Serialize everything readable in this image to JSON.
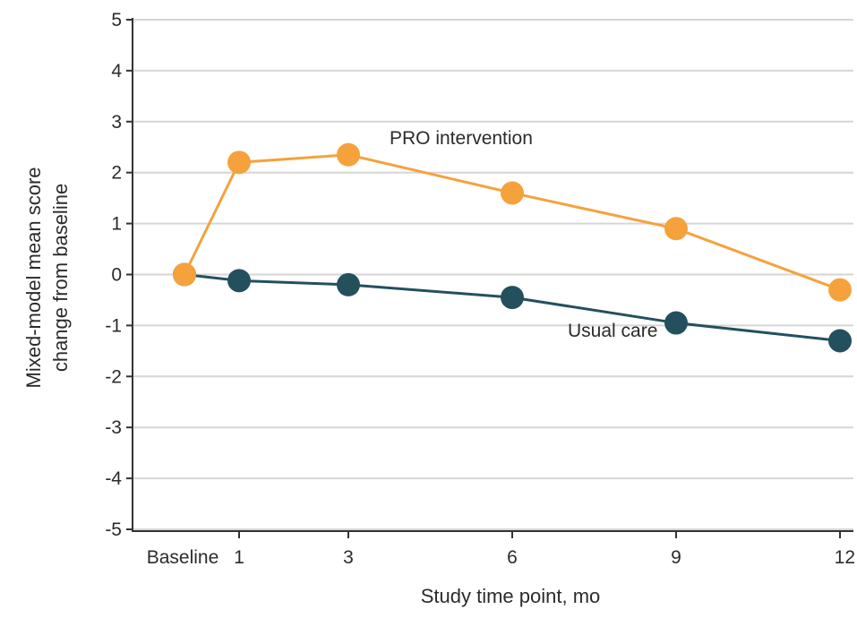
{
  "chart_data": {
    "type": "line",
    "xlabel": "Study time point, mo",
    "ylabel_lines": [
      "Mixed-model mean score",
      "change from baseline"
    ],
    "categories": [
      "Baseline",
      "1",
      "3",
      "6",
      "9",
      "12"
    ],
    "x_positions_months": [
      0,
      1,
      3,
      6,
      9,
      12
    ],
    "ylim": [
      -5,
      5
    ],
    "yticks": [
      5,
      4,
      3,
      2,
      1,
      0,
      -1,
      -2,
      -3,
      -4,
      -5
    ],
    "yticks_display": [
      "5",
      "4",
      "3",
      "2",
      "1",
      "0",
      "-1",
      "-2",
      "-3",
      "-4",
      "-5"
    ],
    "grid": true,
    "series": [
      {
        "name": "PRO intervention",
        "color": "#F5A23D",
        "values": [
          0,
          2.2,
          2.35,
          1.6,
          0.9,
          -0.3
        ]
      },
      {
        "name": "Usual care",
        "color": "#24505E",
        "values": [
          0,
          -0.12,
          -0.2,
          -0.45,
          -0.95,
          -1.3
        ]
      }
    ]
  }
}
